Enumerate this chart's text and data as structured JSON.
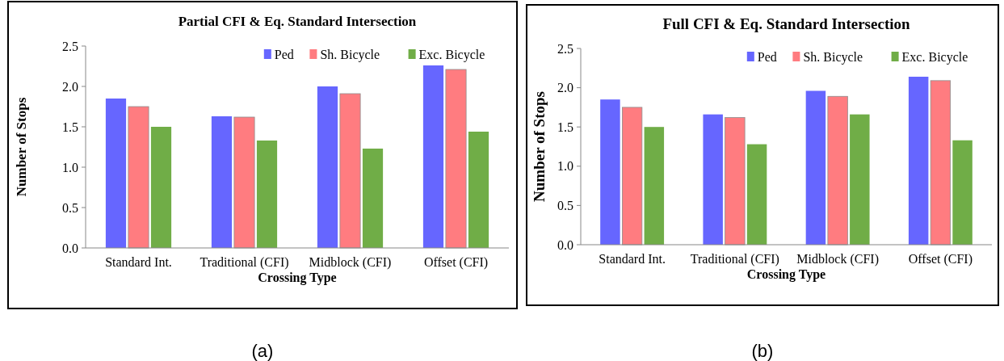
{
  "chart_data": [
    {
      "type": "bar",
      "title": "Partial CFI & Eq. Standard Intersection",
      "xlabel": "Crossing Type",
      "ylabel": "Number of Stops",
      "categories": [
        "Standard Int.",
        "Traditional (CFI)",
        "Midblock (CFI)",
        "Offset (CFI)"
      ],
      "series": [
        {
          "name": "Ped",
          "color": "#6666ff",
          "values": [
            1.85,
            1.63,
            2.0,
            2.26
          ]
        },
        {
          "name": "Sh. Bicycle",
          "color": "#ff7c80",
          "values": [
            1.75,
            1.62,
            1.91,
            2.21
          ]
        },
        {
          "name": "Exc. Bicycle",
          "color": "#70ad47",
          "values": [
            1.5,
            1.33,
            1.23,
            1.44
          ]
        }
      ],
      "ylim": [
        0,
        2.5
      ],
      "yticks": [
        {
          "value": 0,
          "label": "0.0"
        },
        {
          "value": 0.5,
          "label": "0.5"
        },
        {
          "value": 1,
          "label": "1.0"
        },
        {
          "value": 1.5,
          "label": "1.5"
        },
        {
          "value": 2,
          "label": "2.0"
        },
        {
          "value": 2.5,
          "label": "2.5"
        }
      ],
      "legend": "top right",
      "grid": false,
      "annotations": [
        "(a)"
      ]
    },
    {
      "type": "bar",
      "title": "Full CFI & Eq. Standard Intersection",
      "xlabel": "Crossing Type",
      "ylabel": "Number of Stops",
      "categories": [
        "Standard Int.",
        "Traditional (CFI)",
        "Midblock (CFI)",
        "Offset (CFI)"
      ],
      "series": [
        {
          "name": "Ped",
          "color": "#6666ff",
          "values": [
            1.85,
            1.66,
            1.96,
            2.14
          ]
        },
        {
          "name": "Sh. Bicycle",
          "color": "#ff7c80",
          "values": [
            1.75,
            1.62,
            1.89,
            2.09
          ]
        },
        {
          "name": "Exc. Bicycle",
          "color": "#70ad47",
          "values": [
            1.5,
            1.28,
            1.66,
            1.33
          ]
        }
      ],
      "ylim": [
        0,
        2.5
      ],
      "yticks": [
        {
          "value": 0,
          "label": "0.0"
        },
        {
          "value": 0.5,
          "label": "0.5"
        },
        {
          "value": 1,
          "label": "1.0"
        },
        {
          "value": 1.5,
          "label": "1.5"
        },
        {
          "value": 2,
          "label": "2.0"
        },
        {
          "value": 2.5,
          "label": "2.5"
        }
      ],
      "legend": "top right",
      "grid": false,
      "annotations": [
        "(b)"
      ]
    }
  ]
}
